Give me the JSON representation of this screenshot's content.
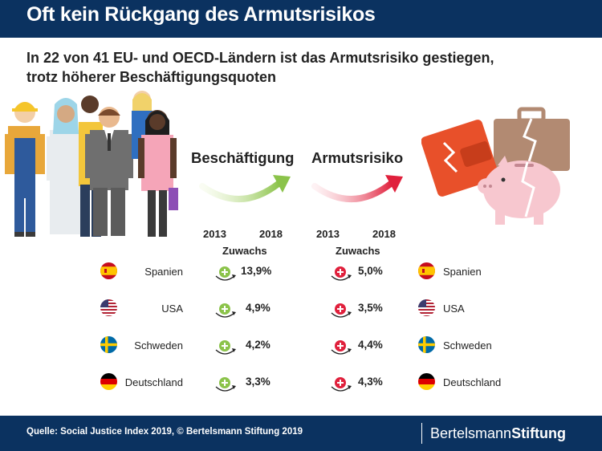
{
  "title": "Oft kein Rückgang des Armutsrisikos",
  "subtitle_line1": "In 22 von 41 EU- und OECD-Ländern ist das Armutsrisiko gestiegen,",
  "subtitle_line2": "trotz höherer Beschäftigungsquoten",
  "employment": {
    "label": "Beschäftigung",
    "year_start": "2013",
    "year_end": "2018",
    "change_label": "Zuwachs",
    "color": "#8bc34a"
  },
  "poverty": {
    "label": "Armutsrisiko",
    "year_start": "2013",
    "year_end": "2018",
    "change_label": "Zuwachs",
    "color": "#e0203c"
  },
  "rows": [
    {
      "country": "Spanien",
      "flag": "spain-flag",
      "employment_growth": "13,9%",
      "poverty_growth": "5,0%"
    },
    {
      "country": "USA",
      "flag": "usa-flag",
      "employment_growth": "4,9%",
      "poverty_growth": "3,5%"
    },
    {
      "country": "Schweden",
      "flag": "sweden-flag",
      "employment_growth": "4,2%",
      "poverty_growth": "4,4%"
    },
    {
      "country": "Deutschland",
      "flag": "germany-flag",
      "employment_growth": "3,3%",
      "poverty_growth": "4,3%"
    }
  ],
  "source": "Quelle: Social Justice Index 2019, © Bertelsmann Stiftung 2019",
  "logo": {
    "part1": "Bertelsmann",
    "part2": "Stiftung"
  }
}
